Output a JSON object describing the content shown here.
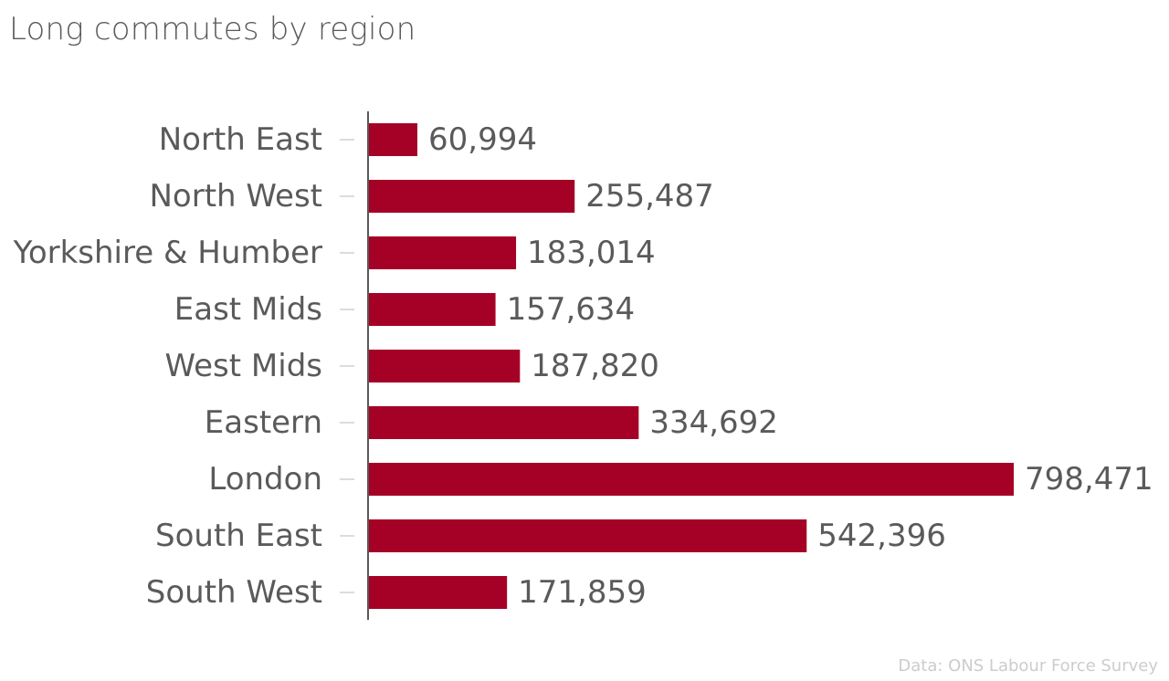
{
  "chart_data": {
    "type": "bar",
    "orientation": "horizontal",
    "title": "Long commutes by region",
    "categories": [
      "North East",
      "North West",
      "Yorkshire & Humber",
      "East Mids",
      "West Mids",
      "Eastern",
      "London",
      "South East",
      "South West"
    ],
    "values": [
      60994,
      255487,
      183014,
      157634,
      187820,
      334692,
      798471,
      542396,
      171859
    ],
    "value_labels": [
      "60,994",
      "255,487",
      "183,014",
      "157,634",
      "187,820",
      "334,692",
      "798,471",
      "542,396",
      "171,859"
    ],
    "xlim": [
      0,
      798471
    ],
    "bar_color": "#a50026",
    "grid": false,
    "legend": "none",
    "source": "Data: ONS Labour Force Survey"
  }
}
